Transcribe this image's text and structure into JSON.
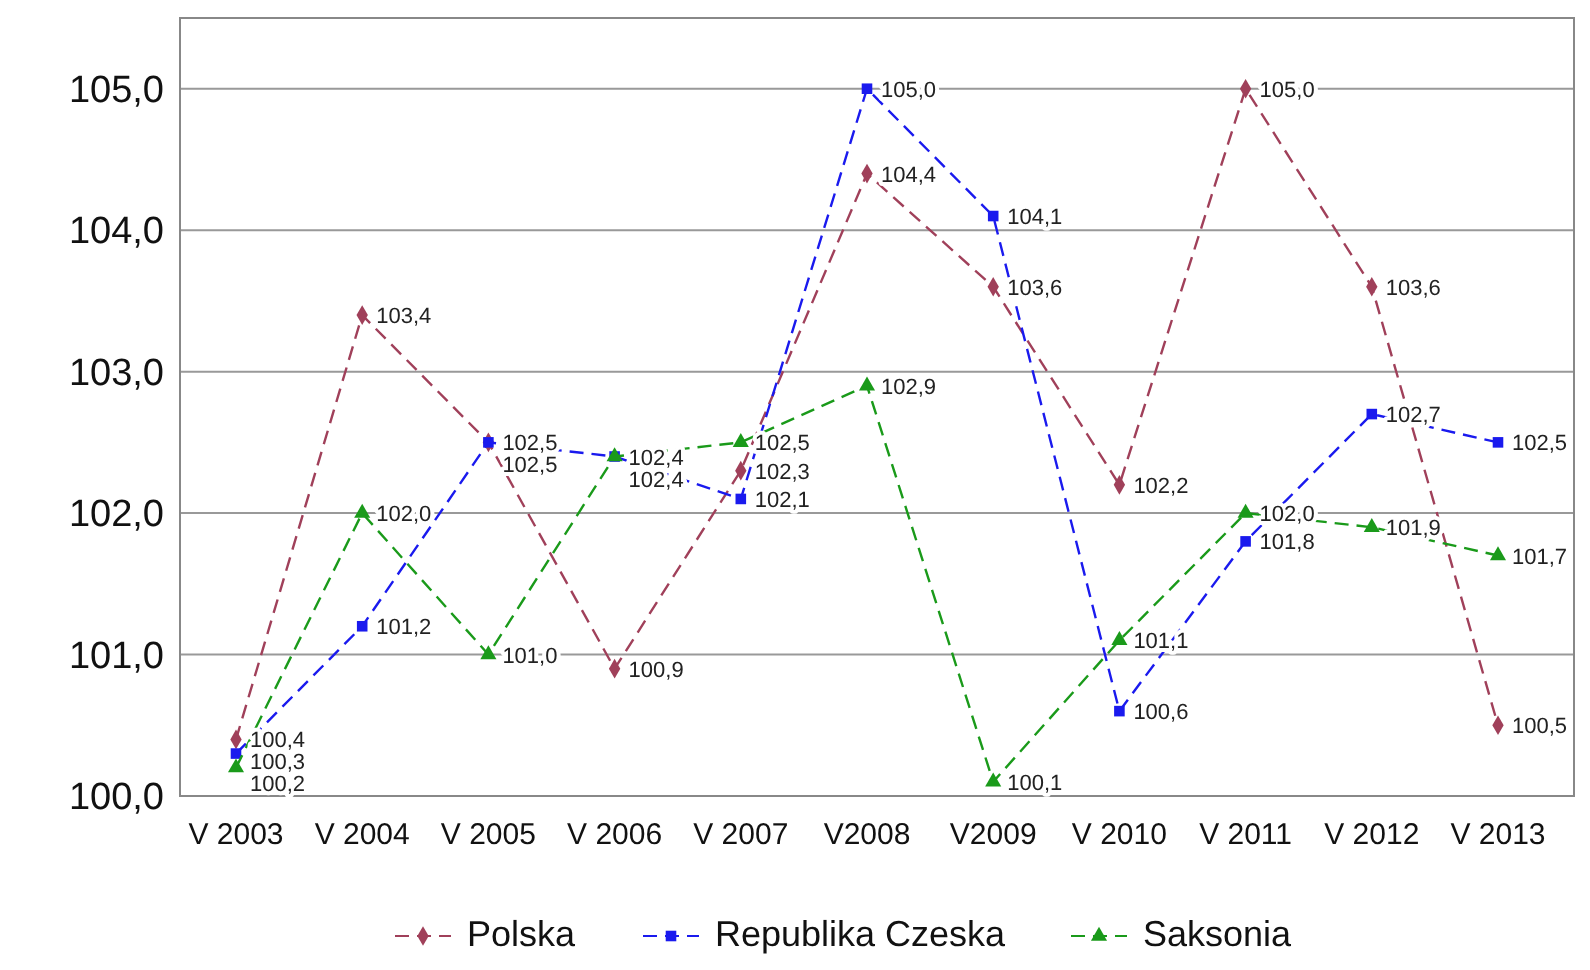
{
  "chart_data": {
    "type": "line",
    "categories": [
      "V 2003",
      "V 2004",
      "V 2005",
      "V 2006",
      "V 2007",
      "V2008",
      "V2009",
      "V 2010",
      "V 2011",
      "V 2012",
      "V 2013"
    ],
    "series": [
      {
        "name": "Polska",
        "color": "#a0405a",
        "marker": "diamond",
        "values": [
          100.4,
          103.4,
          102.5,
          100.9,
          102.3,
          104.4,
          103.6,
          102.2,
          105.0,
          103.6,
          100.5
        ],
        "value_labels": [
          "100,4",
          "103,4",
          "102,5",
          "100,9",
          "102,3",
          "104,4",
          "103,6",
          "102,2",
          "105,0",
          "103,6",
          "100,5"
        ]
      },
      {
        "name": "Republika Czeska",
        "color": "#1a1aee",
        "marker": "square",
        "values": [
          100.3,
          101.2,
          102.5,
          102.4,
          102.1,
          105.0,
          104.1,
          100.6,
          101.8,
          102.7,
          102.5
        ],
        "value_labels": [
          "100,3",
          "101,2",
          "102,5",
          "102,4",
          "102,1",
          "105,0",
          "104,1",
          "100,6",
          "101,8",
          "102,7",
          "102,5"
        ]
      },
      {
        "name": "Saksonia",
        "color": "#1a9a1a",
        "marker": "triangle",
        "values": [
          100.2,
          102.0,
          101.0,
          102.4,
          102.5,
          102.9,
          100.1,
          101.1,
          102.0,
          101.9,
          101.7
        ],
        "value_labels": [
          "100,2",
          "102,0",
          "101,0",
          "102,4",
          "102,5",
          "102,9",
          "100,1",
          "101,1",
          "102,0",
          "101,9",
          "101,7"
        ]
      }
    ],
    "ylim": [
      100,
      105.5
    ],
    "yticks": [
      {
        "value": 100,
        "label": "100,0"
      },
      {
        "value": 101,
        "label": "101,0"
      },
      {
        "value": 102,
        "label": "102,0"
      },
      {
        "value": 103,
        "label": "103,0"
      },
      {
        "value": 104,
        "label": "104,0"
      },
      {
        "value": 105,
        "label": "105,0"
      }
    ],
    "grid": "y",
    "legend": "bottom",
    "line_style": "dashed"
  }
}
